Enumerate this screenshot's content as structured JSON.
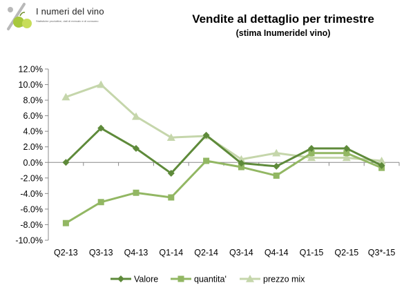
{
  "logo": {
    "title": "I numeri del vino",
    "subtitle": "Statistiche produttive, dati di mercato e di consumo"
  },
  "chart_data": {
    "type": "line",
    "title": "Vendite al dettaglio per trimestre",
    "subtitle": "(stima Inumeridel vino)",
    "categories": [
      "Q2-13",
      "Q3-13",
      "Q4-13",
      "Q1-14",
      "Q2-14",
      "Q3-14",
      "Q4-14",
      "Q1-15",
      "Q2-15",
      "Q3*-15"
    ],
    "ylim": [
      -10,
      12
    ],
    "ytick_step": 2,
    "ytick_format": "percent_1dp",
    "grid": false,
    "legend_position": "bottom",
    "series": [
      {
        "name": "Valore",
        "marker": "diamond",
        "color": "#5e8a3a",
        "values": [
          0.0,
          4.4,
          1.8,
          -1.4,
          3.5,
          -0.1,
          -0.5,
          1.8,
          1.8,
          -0.4
        ]
      },
      {
        "name": "quantita'",
        "marker": "square",
        "color": "#92b763",
        "values": [
          -7.8,
          -5.1,
          -3.9,
          -4.5,
          0.2,
          -0.6,
          -1.7,
          1.2,
          1.2,
          -0.7
        ]
      },
      {
        "name": "prezzo mix",
        "marker": "triangle",
        "color": "#c5d6ab",
        "values": [
          8.4,
          10.0,
          5.9,
          3.2,
          3.4,
          0.4,
          1.2,
          0.6,
          0.6,
          0.2
        ]
      }
    ]
  }
}
